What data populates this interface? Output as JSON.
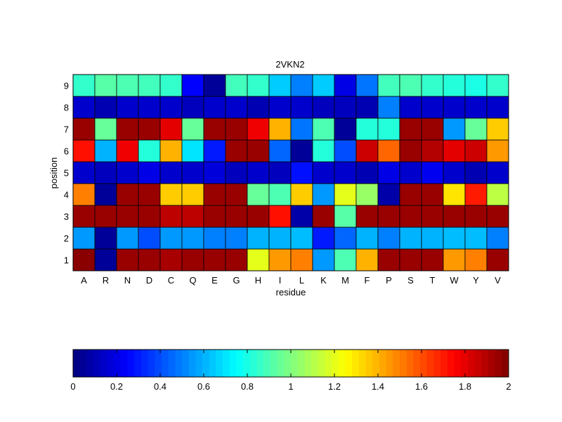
{
  "chart_data": {
    "type": "heatmap",
    "title": "2VKN2",
    "xlabel": "residue",
    "ylabel": "position",
    "x_categories": [
      "A",
      "R",
      "N",
      "D",
      "C",
      "Q",
      "E",
      "G",
      "H",
      "I",
      "L",
      "K",
      "M",
      "F",
      "P",
      "S",
      "T",
      "W",
      "Y",
      "V"
    ],
    "y_categories": [
      "1",
      "2",
      "3",
      "4",
      "5",
      "6",
      "7",
      "8",
      "9"
    ],
    "colormap": "jet",
    "clim": [
      0,
      2
    ],
    "colorbar": {
      "orientation": "horizontal",
      "placement": "bottom",
      "ticks": [
        0,
        0.2,
        0.4,
        0.6,
        0.8,
        1,
        1.2,
        1.4,
        1.6,
        1.8,
        2
      ],
      "tick_labels": [
        "0",
        "0.2",
        "0.4",
        "0.6",
        "0.8",
        "1",
        "1.2",
        "1.4",
        "1.6",
        "1.8",
        "2"
      ]
    },
    "values": [
      [
        1.98,
        0.05,
        1.95,
        1.95,
        1.92,
        1.95,
        1.95,
        1.95,
        1.2,
        1.45,
        1.5,
        0.55,
        0.9,
        1.4,
        1.95,
        1.95,
        1.95,
        1.45,
        1.5,
        1.95
      ],
      [
        0.55,
        0.05,
        0.55,
        0.4,
        0.55,
        0.55,
        0.5,
        0.5,
        0.6,
        0.6,
        0.62,
        0.3,
        0.45,
        0.6,
        0.5,
        0.6,
        0.6,
        0.62,
        0.62,
        0.5
      ],
      [
        1.95,
        1.95,
        1.95,
        1.95,
        1.88,
        1.88,
        1.95,
        1.95,
        1.95,
        1.72,
        0.08,
        1.95,
        0.92,
        1.95,
        1.95,
        1.95,
        1.95,
        1.95,
        1.95,
        1.95
      ],
      [
        1.5,
        0.05,
        1.95,
        1.95,
        1.35,
        1.35,
        1.95,
        1.95,
        0.95,
        0.9,
        1.35,
        0.55,
        1.2,
        1.05,
        0.08,
        1.95,
        1.95,
        1.3,
        1.7,
        1.12
      ],
      [
        0.15,
        0.12,
        0.15,
        0.2,
        0.15,
        0.15,
        0.18,
        0.12,
        0.15,
        0.12,
        0.28,
        0.15,
        0.15,
        0.1,
        0.2,
        0.15,
        0.22,
        0.15,
        0.1,
        0.15
      ],
      [
        1.72,
        0.6,
        1.78,
        0.82,
        1.4,
        0.7,
        0.3,
        1.95,
        1.95,
        0.45,
        0.05,
        0.82,
        0.4,
        1.85,
        1.55,
        1.95,
        1.9,
        1.8,
        1.85,
        1.45
      ],
      [
        1.95,
        0.95,
        1.95,
        1.95,
        1.8,
        0.95,
        1.95,
        1.95,
        1.78,
        1.4,
        0.48,
        0.9,
        0.05,
        0.82,
        0.82,
        1.95,
        1.95,
        0.55,
        0.95,
        1.35
      ],
      [
        0.15,
        0.1,
        0.15,
        0.15,
        0.15,
        0.12,
        0.15,
        0.15,
        0.1,
        0.15,
        0.15,
        0.12,
        0.12,
        0.1,
        0.5,
        0.15,
        0.15,
        0.15,
        0.15,
        0.15
      ],
      [
        0.85,
        0.92,
        0.9,
        0.88,
        0.85,
        0.25,
        0.05,
        0.88,
        0.85,
        0.65,
        0.5,
        0.65,
        0.2,
        0.48,
        0.88,
        0.9,
        0.85,
        0.82,
        0.8,
        0.85
      ]
    ]
  }
}
